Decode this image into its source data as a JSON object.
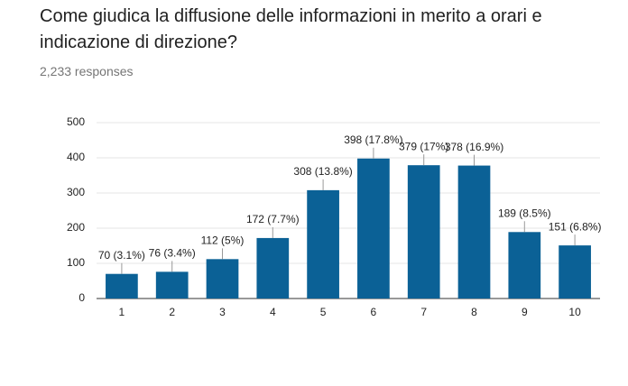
{
  "chart_data": {
    "type": "bar",
    "title": "Come giudica la diffusione delle informazioni in merito a orari e indicazione di direzione?",
    "subtitle": "2,233 responses",
    "categories": [
      "1",
      "2",
      "3",
      "4",
      "5",
      "6",
      "7",
      "8",
      "9",
      "10"
    ],
    "values": [
      70,
      76,
      112,
      172,
      308,
      398,
      379,
      378,
      189,
      151
    ],
    "value_labels": [
      "70 (3.1%)",
      "76 (3.4%)",
      "112 (5%)",
      "172 (7.7%)",
      "308 (13.8%)",
      "398 (17.8%)",
      "379 (17%)",
      "378 (16.9%)",
      "189 (8.5%)",
      "151 (6.8%)"
    ],
    "color": "#0b6196",
    "ylim": [
      0,
      500
    ],
    "yticks": [
      0,
      100,
      200,
      300,
      400,
      500
    ],
    "grid": true
  }
}
